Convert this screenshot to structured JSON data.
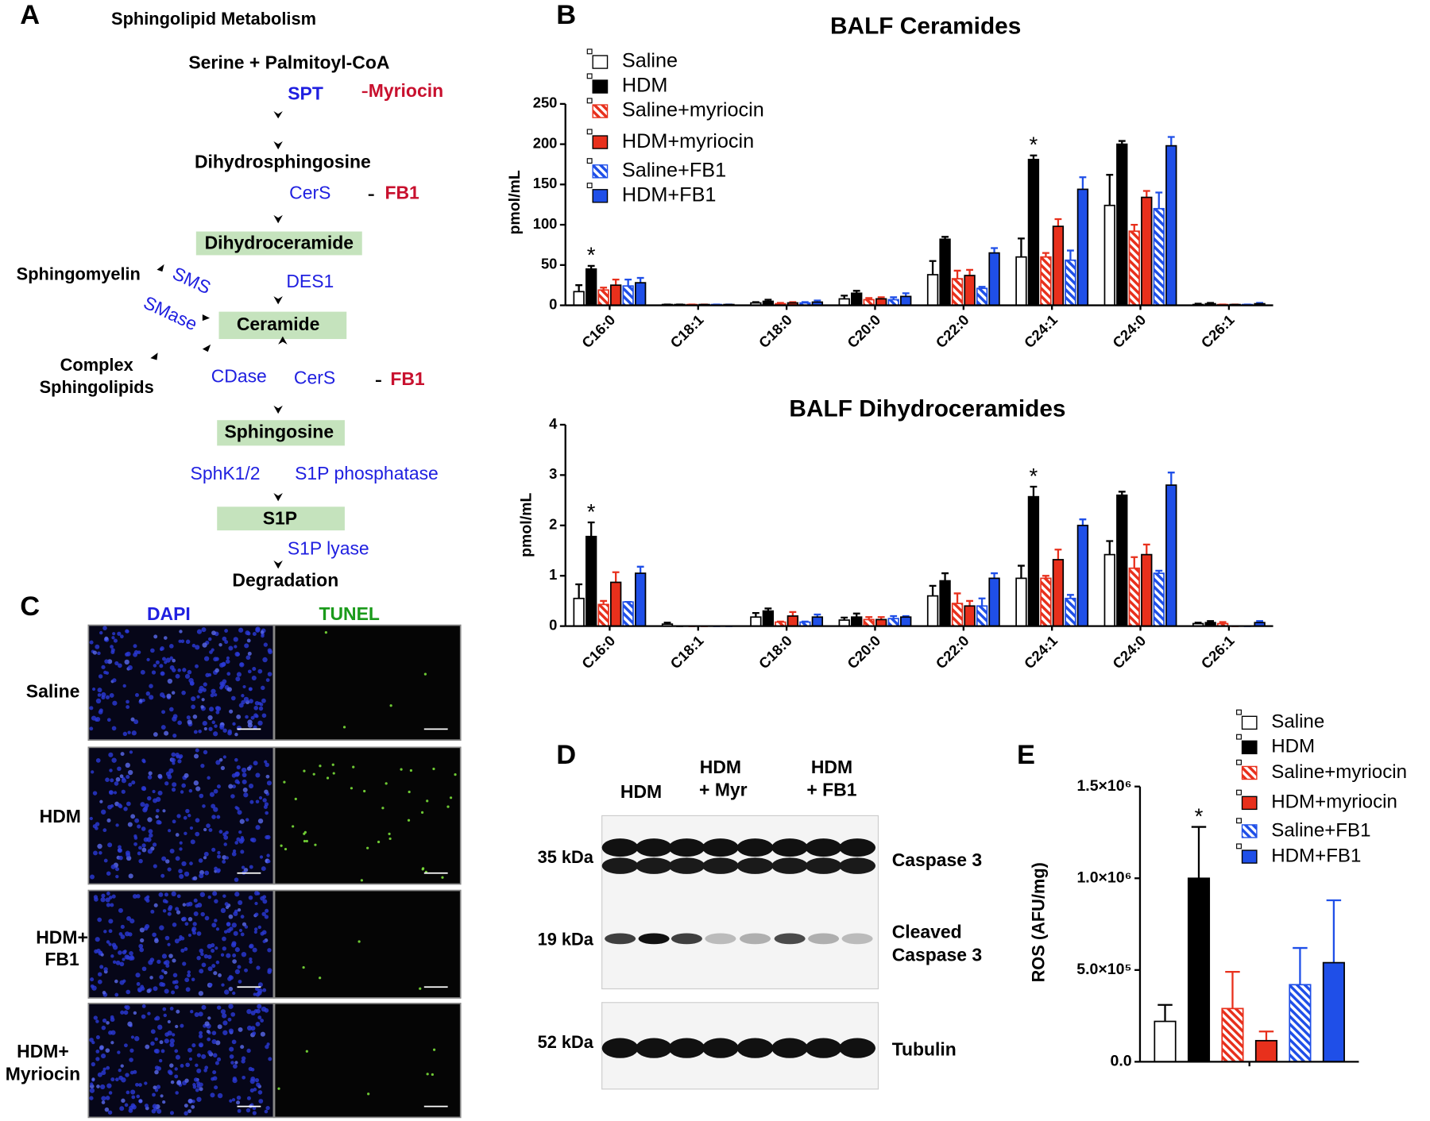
{
  "panel_labels": [
    "A",
    "B",
    "C",
    "D",
    "E"
  ],
  "diagram": {
    "title": "Sphingolipid Metabolism",
    "substrate": "Serine + Palmitoyl-CoA",
    "metabolites": [
      "Dihydrosphingosine",
      "Dihydroceramide",
      "Ceramide",
      "Sphingosine",
      "S1P",
      "Degradation"
    ],
    "side": [
      "Sphingomyelin",
      "Complex",
      "Sphingolipids"
    ],
    "enzymes": [
      "SPT",
      "CerS",
      "DES1",
      "SMS",
      "SMase",
      "CDase",
      "CerS",
      "SphK1/2",
      "S1P phosphatase",
      "S1P lyase"
    ],
    "inhibitors": [
      "Myriocin",
      "FB1",
      "FB1"
    ]
  },
  "microscopy": {
    "columns": [
      "DAPI",
      "TUNEL"
    ],
    "rows": [
      [
        "Saline"
      ],
      [
        "HDM"
      ],
      [
        "HDM+",
        "FB1"
      ],
      [
        "HDM+",
        "Myriocin"
      ]
    ]
  },
  "blot": {
    "lanes": [
      [
        "HDM"
      ],
      [
        "HDM",
        "+ Myr"
      ],
      [
        "HDM",
        "+ FB1"
      ]
    ],
    "markers": [
      "35 kDa",
      "19 kDa",
      "52 kDa"
    ],
    "bands": [
      [
        "Caspase 3"
      ],
      [
        "Cleaved",
        "Caspase 3"
      ],
      [
        "Tubulin"
      ]
    ]
  },
  "chart_data": [
    {
      "type": "bar",
      "title": "BALF Ceramides",
      "ylabel": "pmol/mL",
      "legend": true,
      "categories": [
        "C16:0",
        "C18:1",
        "C18:0",
        "C20:0",
        "C22:0",
        "C24:1",
        "C24:0",
        "C26:1"
      ],
      "ylim": [
        0,
        250
      ],
      "yticks": [
        0,
        50,
        100,
        150,
        200,
        250
      ],
      "series": [
        {
          "name": "Saline",
          "color": "#ffffff",
          "edgecolor": "#000000",
          "hatch": false,
          "values": [
            17,
            1,
            3,
            8,
            38,
            60,
            124,
            1
          ],
          "errors": [
            8,
            0,
            1,
            4,
            17,
            23,
            38,
            1
          ]
        },
        {
          "name": "HDM",
          "color": "#000000",
          "edgecolor": "#000000",
          "hatch": false,
          "values": [
            45,
            1,
            5,
            15,
            82,
            181,
            200,
            2
          ],
          "errors": [
            4,
            0,
            2,
            3,
            3,
            5,
            4,
            1
          ]
        },
        {
          "name": "Saline+myriocin",
          "color": "#e8301c",
          "edgecolor": "#e8301c",
          "hatch": true,
          "values": [
            19,
            1,
            2,
            7,
            33,
            60,
            92,
            1
          ],
          "errors": [
            3,
            0,
            1,
            2,
            10,
            5,
            8,
            0
          ]
        },
        {
          "name": "HDM+myriocin",
          "color": "#e8301c",
          "edgecolor": "#000000",
          "hatch": false,
          "values": [
            25,
            1,
            3,
            8,
            37,
            98,
            134,
            1
          ],
          "errors": [
            7,
            0,
            1,
            2,
            7,
            9,
            8,
            0
          ]
        },
        {
          "name": "Saline+FB1",
          "color": "#1f4fe8",
          "edgecolor": "#1f4fe8",
          "hatch": true,
          "values": [
            24,
            1,
            3,
            7,
            21,
            56,
            120,
            1
          ],
          "errors": [
            8,
            0,
            1,
            3,
            2,
            12,
            20,
            0
          ]
        },
        {
          "name": "HDM+FB1",
          "color": "#1f4fe8",
          "edgecolor": "#000000",
          "hatch": false,
          "values": [
            28,
            1,
            4,
            11,
            65,
            144,
            198,
            2
          ],
          "errors": [
            6,
            0,
            2,
            4,
            6,
            15,
            11,
            1
          ]
        }
      ],
      "annotations": [
        {
          "text": "*",
          "category": 0,
          "series": 1
        },
        {
          "text": "*",
          "category": 5,
          "series": 1
        }
      ]
    },
    {
      "type": "bar",
      "title": "BALF Dihydroceramides",
      "ylabel": "pmol/mL",
      "legend": false,
      "categories": [
        "C16:0",
        "C18:1",
        "C18:0",
        "C20:0",
        "C22:0",
        "C24:1",
        "C24:0",
        "C26:1"
      ],
      "ylim": [
        0,
        4
      ],
      "yticks": [
        0,
        1,
        2,
        3,
        4
      ],
      "series": [
        {
          "name": "Saline",
          "color": "#ffffff",
          "edgecolor": "#000000",
          "hatch": false,
          "values": [
            0.55,
            0.04,
            0.18,
            0.12,
            0.6,
            0.95,
            1.42,
            0.05
          ],
          "errors": [
            0.28,
            0.03,
            0.08,
            0.05,
            0.2,
            0.25,
            0.27,
            0.02
          ]
        },
        {
          "name": "HDM",
          "color": "#000000",
          "edgecolor": "#000000",
          "hatch": false,
          "values": [
            1.78,
            0,
            0.3,
            0.18,
            0.9,
            2.57,
            2.6,
            0.07
          ],
          "errors": [
            0.28,
            0,
            0.05,
            0.07,
            0.15,
            0.2,
            0.07,
            0.03
          ]
        },
        {
          "name": "Saline+myriocin",
          "color": "#e8301c",
          "edgecolor": "#e8301c",
          "hatch": true,
          "values": [
            0.43,
            0,
            0.08,
            0.13,
            0.45,
            0.95,
            1.15,
            0.05
          ],
          "errors": [
            0.07,
            0,
            0.01,
            0.05,
            0.2,
            0.05,
            0.22,
            0.03
          ]
        },
        {
          "name": "HDM+myriocin",
          "color": "#e8301c",
          "edgecolor": "#000000",
          "hatch": false,
          "values": [
            0.87,
            0,
            0.2,
            0.13,
            0.4,
            1.32,
            1.42,
            0
          ],
          "errors": [
            0.2,
            0,
            0.08,
            0.05,
            0.1,
            0.2,
            0.2,
            0
          ]
        },
        {
          "name": "Saline+FB1",
          "color": "#1f4fe8",
          "edgecolor": "#1f4fe8",
          "hatch": true,
          "values": [
            0.48,
            0,
            0.08,
            0.15,
            0.4,
            0.55,
            1.05,
            0
          ],
          "errors": [
            0,
            0,
            0.01,
            0.05,
            0.15,
            0.07,
            0.05,
            0
          ]
        },
        {
          "name": "HDM+FB1",
          "color": "#1f4fe8",
          "edgecolor": "#000000",
          "hatch": false,
          "values": [
            1.05,
            0,
            0.18,
            0.18,
            0.95,
            2.0,
            2.8,
            0.07
          ],
          "errors": [
            0.13,
            0,
            0.05,
            0.02,
            0.1,
            0.12,
            0.25,
            0.03
          ]
        }
      ],
      "annotations": [
        {
          "text": "*",
          "category": 0,
          "series": 1
        },
        {
          "text": "*",
          "category": 5,
          "series": 1
        }
      ]
    },
    {
      "type": "bar",
      "ylabel": "ROS (AFU/mg)",
      "legend": true,
      "categories": [
        null
      ],
      "ylim": [
        0,
        1500000
      ],
      "yticks": [
        {
          "value": 0,
          "label": "0.0"
        },
        {
          "value": 500000,
          "label": "5.0×10⁵"
        },
        {
          "value": 1000000,
          "label": "1.0×10⁶"
        },
        {
          "value": 1500000,
          "label": "1.5×10⁶"
        }
      ],
      "series": [
        {
          "name": "Saline",
          "color": "#ffffff",
          "edgecolor": "#000000",
          "hatch": false,
          "values": [
            220000
          ],
          "errors": [
            90000
          ]
        },
        {
          "name": "HDM",
          "color": "#000000",
          "edgecolor": "#000000",
          "hatch": false,
          "values": [
            1000000
          ],
          "errors": [
            280000
          ]
        },
        {
          "name": "Saline+myriocin",
          "color": "#e8301c",
          "edgecolor": "#e8301c",
          "hatch": true,
          "values": [
            290000
          ],
          "errors": [
            200000
          ]
        },
        {
          "name": "HDM+myriocin",
          "color": "#e8301c",
          "edgecolor": "#000000",
          "hatch": false,
          "values": [
            115000
          ],
          "errors": [
            50000
          ]
        },
        {
          "name": "Saline+FB1",
          "color": "#1f4fe8",
          "edgecolor": "#000000",
          "hatch": true,
          "values": [
            420000
          ],
          "errors": [
            200000
          ]
        },
        {
          "name": "HDM+FB1",
          "color": "#1f4fe8",
          "edgecolor": "#000000",
          "hatch": false,
          "values": [
            540000
          ],
          "errors": [
            340000
          ]
        }
      ],
      "annotations": [
        {
          "text": "*",
          "category": 0,
          "series": 1
        }
      ]
    }
  ]
}
